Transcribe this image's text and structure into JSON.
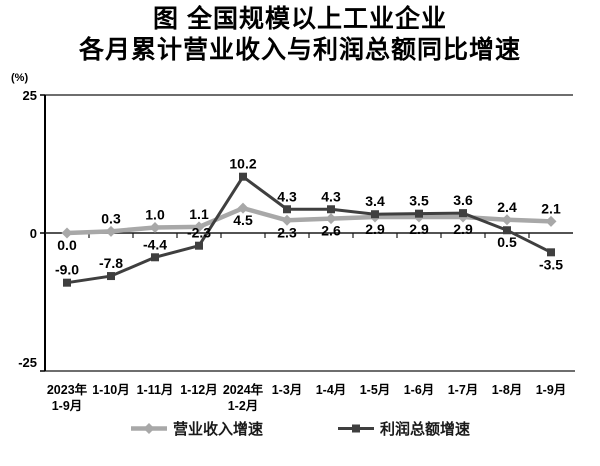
{
  "title": {
    "line1": "图 全国规模以上工业企业",
    "line2": "各月累计营业收入与利润总额同比增速"
  },
  "chart_data": {
    "type": "line",
    "title": "图 全国规模以上工业企业 各月累计营业收入与利润总额同比增速",
    "unit_label": "(%)",
    "ylabel": "(%)",
    "ylim": [
      -25,
      25
    ],
    "yticks": [
      25,
      0,
      -25
    ],
    "grid": false,
    "legend_position": "bottom",
    "categories": [
      "2023年\n1-9月",
      "1-10月",
      "1-11月",
      "1-12月",
      "2024年\n1-2月",
      "1-3月",
      "1-4月",
      "1-5月",
      "1-6月",
      "1-7月",
      "1-8月",
      "1-9月"
    ],
    "series": [
      {
        "name": "营业收入增速",
        "color": "#a8a8a8",
        "marker": "diamond",
        "values": [
          0.0,
          0.3,
          1.0,
          1.1,
          4.5,
          2.3,
          2.6,
          2.9,
          2.9,
          2.9,
          2.4,
          2.1
        ],
        "labels": [
          "0.0",
          "0.3",
          "1.0",
          "1.1",
          "4.5",
          "2.3",
          "2.6",
          "2.9",
          "2.9",
          "2.9",
          "2.4",
          "2.1"
        ],
        "label_pos": [
          "below",
          "above",
          "above",
          "above",
          "below",
          "below",
          "below",
          "below",
          "below",
          "below",
          "above",
          "above"
        ]
      },
      {
        "name": "利润总额增速",
        "color": "#3f3f3f",
        "marker": "square",
        "values": [
          -9.0,
          -7.8,
          -4.4,
          -2.3,
          10.2,
          4.3,
          4.3,
          3.4,
          3.5,
          3.6,
          0.5,
          -3.5
        ],
        "labels": [
          "-9.0",
          "-7.8",
          "-4.4",
          "-2.3",
          "10.2",
          "4.3",
          "4.3",
          "3.4",
          "3.5",
          "3.6",
          "0.5",
          "-3.5"
        ],
        "label_pos": [
          "above",
          "above",
          "above",
          "above",
          "above",
          "above",
          "above",
          "above",
          "above",
          "above",
          "below",
          "below"
        ]
      }
    ],
    "colors": {
      "frame": "#6e6e6e",
      "axis": "#000000",
      "zero_line": "#1a1a1a",
      "label_text": "#000000",
      "tick_text": "#000000"
    }
  }
}
